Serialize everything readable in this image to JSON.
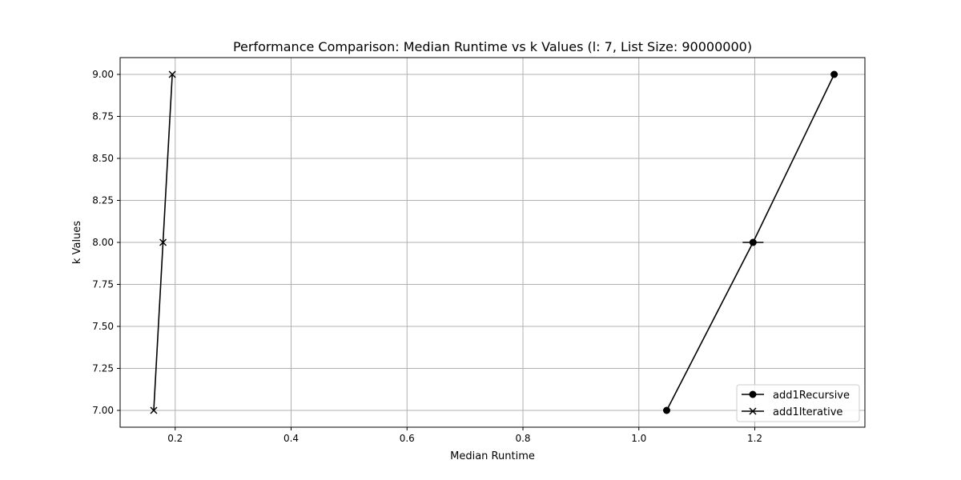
{
  "chart_data": {
    "type": "line",
    "title": "Performance Comparison: Median Runtime vs k Values (l: 7, List Size: 90000000)",
    "xlabel": "Median Runtime",
    "ylabel": "k Values",
    "xlim": [
      0.105,
      1.39
    ],
    "ylim": [
      6.9,
      9.1
    ],
    "x_ticks": [
      0.2,
      0.4,
      0.6,
      0.8,
      1.0,
      1.2
    ],
    "x_tick_labels": [
      "0.2",
      "0.4",
      "0.6",
      "0.8",
      "1.0",
      "1.2"
    ],
    "y_ticks": [
      7.0,
      7.25,
      7.5,
      7.75,
      8.0,
      8.25,
      8.5,
      8.75,
      9.0
    ],
    "y_tick_labels": [
      "7.00",
      "7.25",
      "7.50",
      "7.75",
      "8.00",
      "8.25",
      "8.50",
      "8.75",
      "9.00"
    ],
    "grid": true,
    "legend_position": "lower-right",
    "color": "#000000",
    "series": [
      {
        "name": "add1Recursive",
        "marker": "circle",
        "points": [
          {
            "x": 1.048,
            "y": 7.0
          },
          {
            "x": 1.197,
            "y": 8.0,
            "xerr": 0.018
          },
          {
            "x": 1.337,
            "y": 9.0
          }
        ]
      },
      {
        "name": "add1Iterative",
        "marker": "x",
        "points": [
          {
            "x": 0.163,
            "y": 7.0
          },
          {
            "x": 0.179,
            "y": 8.0
          },
          {
            "x": 0.195,
            "y": 9.0
          }
        ]
      }
    ]
  }
}
